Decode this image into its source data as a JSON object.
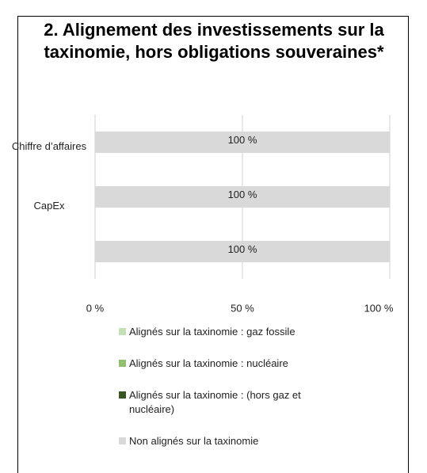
{
  "chart_data": {
    "type": "stacked_barh",
    "title": "2. Alignement des investissements sur la taxinomie, hors obligations souveraines*",
    "categories": [
      "Chiffre d’affaires",
      "CapEx",
      null
    ],
    "series": [
      {
        "name": "Alignés sur la taxinomie : gaz fossile",
        "color": "#c5e0b4",
        "values": [
          0,
          0,
          0
        ]
      },
      {
        "name": "Alignés sur la taxinomie : nucléaire",
        "color": "#8fbf6f",
        "values": [
          0,
          0,
          0
        ]
      },
      {
        "name": "Alignés sur la taxinomie : (hors gaz et nucléaire)",
        "color": "#375623",
        "values": [
          0,
          0,
          0
        ]
      },
      {
        "name": "Non alignés sur la taxinomie",
        "color": "#d9d9d9",
        "values": [
          100,
          100,
          100
        ],
        "value_labels": [
          "100 %",
          "100 %",
          "100 %"
        ]
      }
    ],
    "xlim": [
      0,
      100
    ],
    "xticks": [
      {
        "value": 0,
        "label": "0 %"
      },
      {
        "value": 50,
        "label": "50 %"
      },
      {
        "value": 100,
        "label": "100 %"
      }
    ],
    "grid": true
  }
}
